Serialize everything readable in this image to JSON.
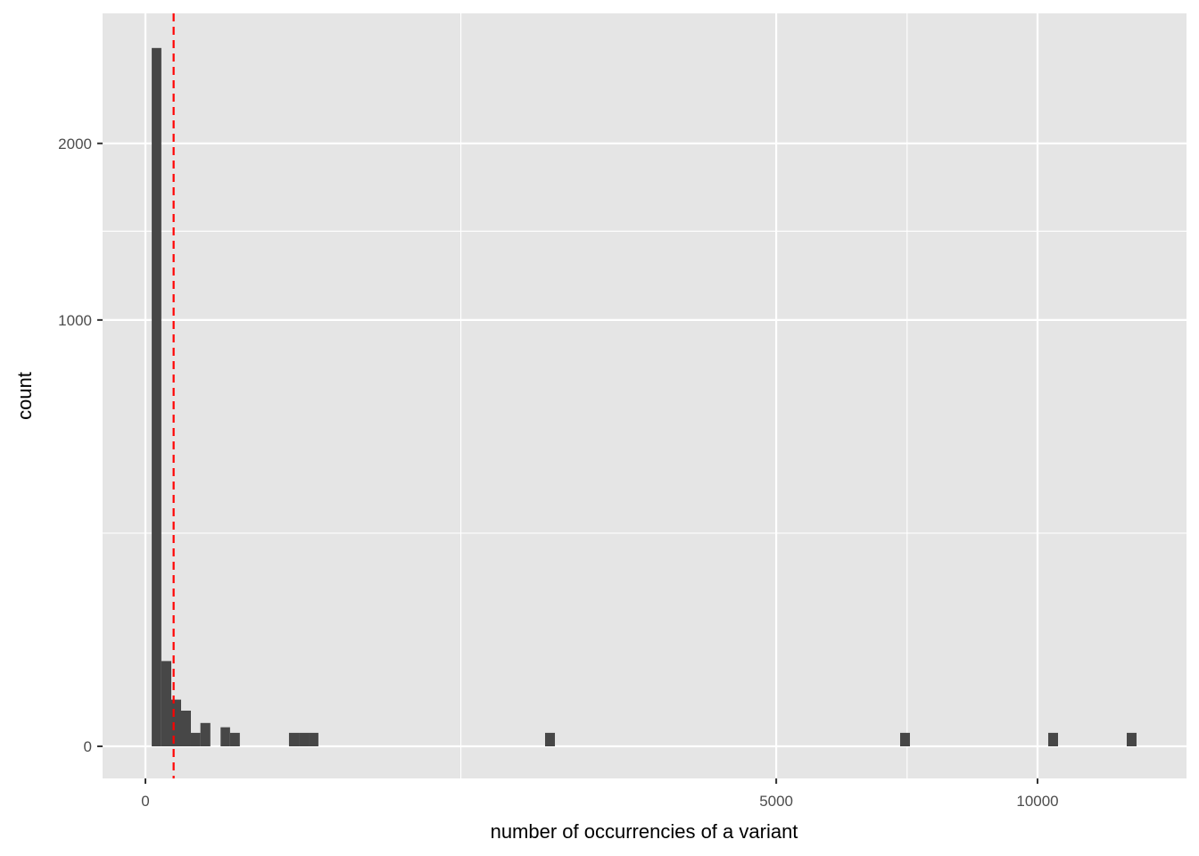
{
  "chart_data": {
    "type": "histogram",
    "xlabel": "number of occurrencies of a variant",
    "ylabel": "count",
    "x_scale": "sqrt",
    "y_scale": "sqrt",
    "x_ticks": [
      0,
      5000,
      10000
    ],
    "x_tick_labels": [
      "0",
      "5000",
      "10000"
    ],
    "y_ticks": [
      0,
      1000,
      2000
    ],
    "y_tick_labels": [
      "0",
      "1000",
      "2000"
    ],
    "grid": true,
    "bar_color": "#474747",
    "vline": {
      "x": 10,
      "color": "#ff0000",
      "style": "dashed"
    },
    "bins": [
      {
        "xmin": 0.5,
        "xmax": 3.2,
        "count": 2683
      },
      {
        "xmin": 3.2,
        "xmax": 8.4,
        "count": 40
      },
      {
        "xmin": 8.4,
        "xmax": 16,
        "count": 12
      },
      {
        "xmin": 16,
        "xmax": 26,
        "count": 7
      },
      {
        "xmin": 26,
        "xmax": 38,
        "count": 1
      },
      {
        "xmin": 38,
        "xmax": 53,
        "count": 3
      },
      {
        "xmin": 71,
        "xmax": 90,
        "count": 2
      },
      {
        "xmin": 90,
        "xmax": 112,
        "count": 1
      },
      {
        "xmin": 259,
        "xmax": 296,
        "count": 1
      },
      {
        "xmin": 296,
        "xmax": 335,
        "count": 1
      },
      {
        "xmin": 335,
        "xmax": 376,
        "count": 1
      },
      {
        "xmin": 2007,
        "xmax": 2107,
        "count": 1
      },
      {
        "xmin": 7157,
        "xmax": 7344,
        "count": 1
      },
      {
        "xmin": 10241,
        "xmax": 10465,
        "count": 1
      },
      {
        "xmin": 12100,
        "xmax": 12343,
        "count": 1
      }
    ]
  }
}
